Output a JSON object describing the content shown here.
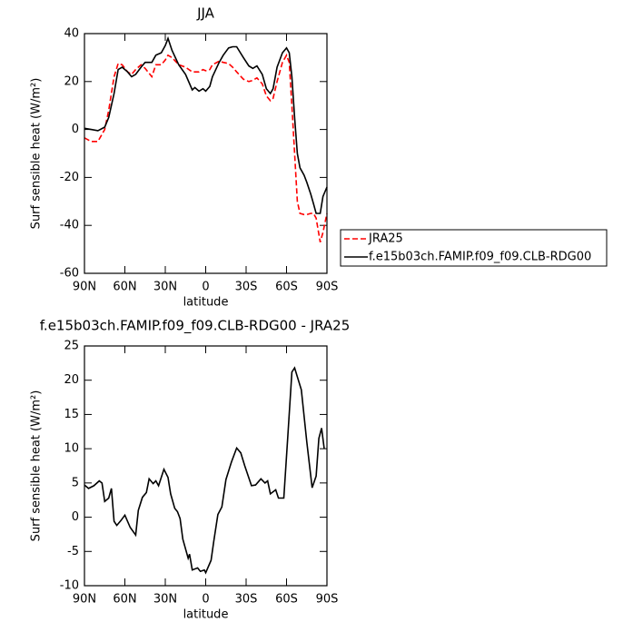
{
  "chart_data": [
    {
      "type": "line",
      "title": "JJA",
      "x_label": "latitude",
      "y_label": "Surf sensible heat (W/m²)",
      "x": [
        90,
        85,
        80,
        75,
        72,
        68,
        65,
        62,
        58,
        55,
        52,
        48,
        45,
        40,
        37,
        33,
        30,
        28,
        25,
        20,
        15,
        10,
        8,
        5,
        2,
        0,
        -3,
        -5,
        -10,
        -13,
        -17,
        -20,
        -23,
        -28,
        -32,
        -35,
        -38,
        -42,
        -45,
        -48,
        -50,
        -53,
        -57,
        -60,
        -62,
        -64,
        -66,
        -68,
        -70,
        -73,
        -75,
        -78,
        -80,
        -82,
        -85,
        -87,
        -90
      ],
      "series": [
        {
          "name": "JRA25",
          "color": "#ff0000",
          "dash": "dashed",
          "values": [
            -3.5,
            -5,
            -5,
            0,
            8,
            22,
            27.5,
            27,
            24,
            23,
            25,
            27,
            25.5,
            22,
            27,
            27,
            29,
            31,
            30,
            27,
            26,
            24,
            24,
            24,
            25,
            24.5,
            25,
            27,
            28.5,
            28,
            27.5,
            26,
            24,
            21,
            20,
            20.5,
            21.5,
            19,
            14,
            12,
            13,
            20,
            28,
            31,
            28,
            10,
            -10,
            -30,
            -35,
            -35.5,
            -35.5,
            -35,
            -35,
            -37,
            -47,
            -43,
            -35
          ]
        },
        {
          "name": "f.e15b03ch.FAMIP.f09_f09.CLB-RDG00",
          "color": "#000000",
          "dash": "solid",
          "values": [
            0.5,
            0,
            -0.5,
            1,
            5,
            15,
            25,
            26,
            24,
            22,
            23,
            26,
            28,
            28,
            31,
            32,
            35,
            38,
            33,
            27,
            23,
            16.5,
            17.5,
            16,
            17,
            16,
            18,
            22,
            28,
            31,
            34,
            34.5,
            34.5,
            30,
            26.5,
            25.5,
            26.5,
            23,
            17,
            15,
            17,
            26,
            32,
            34,
            32,
            22,
            5,
            -10,
            -16,
            -19,
            -22,
            -27,
            -31,
            -35,
            -35,
            -28,
            -24
          ]
        }
      ],
      "xlim": [
        90,
        -90
      ],
      "xticks": [
        {
          "value": 90,
          "label": "90N"
        },
        {
          "value": 60,
          "label": "60N"
        },
        {
          "value": 30,
          "label": "30N"
        },
        0,
        {
          "value": -30,
          "label": "30S"
        },
        {
          "value": -60,
          "label": "60S"
        },
        {
          "value": -90,
          "label": "90S"
        }
      ],
      "ylim": [
        -60,
        40
      ],
      "yticks": [
        -60,
        -40,
        -20,
        0,
        20,
        40
      ],
      "legend": "right"
    },
    {
      "type": "line",
      "title": "f.e15b03ch.FAMIP.f09_f09.CLB-RDG00  -  JRA25",
      "x_label": "latitude",
      "y_label": "Surf sensible heat (W/m²)",
      "color": "#000000",
      "x": [
        90,
        87,
        83,
        79,
        77,
        75,
        72,
        70,
        68,
        66,
        63,
        60,
        56,
        52,
        50,
        47,
        44,
        42,
        39,
        37,
        35,
        31,
        28,
        26,
        23,
        21,
        19,
        17,
        13,
        12,
        10,
        6,
        4,
        1,
        0,
        -4,
        -6,
        -9,
        -12,
        -15,
        -19,
        -23,
        -26,
        -29,
        -34,
        -37,
        -41,
        -44,
        -46,
        -48,
        -52,
        -54,
        -58,
        -61,
        -64,
        -66,
        -71,
        -75,
        -79,
        -82,
        -84,
        -86,
        -88
      ],
      "values": [
        4.7,
        4.2,
        4.6,
        5.3,
        5,
        2.3,
        2.8,
        4.2,
        -0.6,
        -1.2,
        -0.5,
        0.3,
        -1.5,
        -2.6,
        1,
        2.9,
        3.6,
        5.6,
        4.9,
        5.3,
        4.6,
        7,
        5.8,
        3.4,
        1.3,
        0.8,
        -0.2,
        -3.2,
        -6,
        -5.4,
        -7.7,
        -7.4,
        -7.9,
        -7.7,
        -8.1,
        -6.3,
        -3.5,
        0.4,
        1.5,
        5.5,
        8,
        10.1,
        9.4,
        7.5,
        4.6,
        4.7,
        5.6,
        5,
        5.3,
        3.4,
        4,
        2.8,
        2.8,
        12,
        21.2,
        21.8,
        18.6,
        11,
        4.3,
        6,
        11.5,
        13,
        10
      ],
      "xlim": [
        90,
        -90
      ],
      "xticks": [
        {
          "value": 90,
          "label": "90N"
        },
        {
          "value": 60,
          "label": "60N"
        },
        {
          "value": 30,
          "label": "30N"
        },
        0,
        {
          "value": -30,
          "label": "30S"
        },
        {
          "value": -60,
          "label": "60S"
        },
        {
          "value": -90,
          "label": "90S"
        }
      ],
      "ylim": [
        -10,
        25
      ],
      "yticks": [
        -10,
        -5,
        0,
        5,
        10,
        15,
        20,
        25
      ]
    }
  ]
}
